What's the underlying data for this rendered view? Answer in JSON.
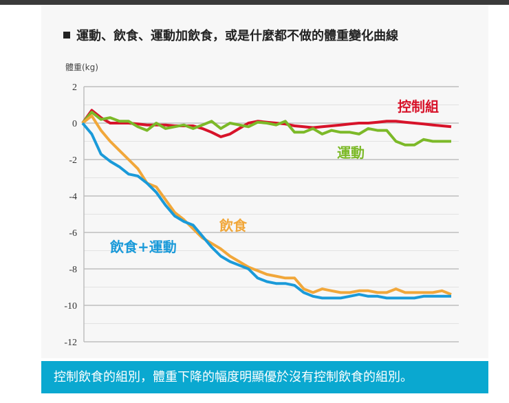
{
  "title": "運動、飲食、運動加飲食，或是什麼都不做的體重變化曲線",
  "banner": "控制飲食的組別，體重下降的幅度明顯優於沒有控制飲食的組別。",
  "chart_data": {
    "type": "line",
    "title": "運動、飲食、運動加飲食，或是什麼都不做的體重變化曲線",
    "ylabel": "體重(kg)",
    "xlabel": "",
    "ylim": [
      -12,
      2
    ],
    "yticks": [
      "2",
      "0",
      "-2",
      "-4",
      "-6",
      "-8",
      "-10",
      "-12"
    ],
    "ytick_values": [
      2,
      0,
      -2,
      -4,
      -6,
      -8,
      -10,
      -12
    ],
    "grid": true,
    "series": [
      {
        "name": "控制組",
        "color": "#d7132a",
        "values": [
          0,
          0.7,
          0.3,
          0,
          0,
          0,
          -0.05,
          -0.1,
          -0.1,
          -0.1,
          -0.15,
          -0.15,
          -0.15,
          -0.3,
          -0.5,
          -0.75,
          -0.6,
          -0.3,
          0,
          0.1,
          0.05,
          0,
          -0.05,
          -0.15,
          -0.2,
          -0.25,
          -0.2,
          -0.15,
          -0.1,
          -0.05,
          0,
          0,
          0.05,
          0.1,
          0.1,
          0.05,
          0,
          -0.05,
          -0.1,
          -0.15,
          -0.2
        ]
      },
      {
        "name": "運動",
        "color": "#7cb928",
        "values": [
          0,
          0.6,
          0.2,
          0.3,
          0.1,
          0.1,
          -0.2,
          -0.4,
          0,
          -0.3,
          -0.2,
          -0.1,
          -0.3,
          -0.1,
          0.1,
          -0.3,
          0,
          -0.1,
          -0.2,
          0.05,
          0,
          -0.1,
          0.1,
          -0.5,
          -0.5,
          -0.3,
          -0.6,
          -0.4,
          -0.5,
          -0.5,
          -0.6,
          -0.3,
          -0.4,
          -0.4,
          -1.0,
          -1.2,
          -1.2,
          -0.9,
          -1.0,
          -1.0,
          -1.0
        ]
      },
      {
        "name": "飲食",
        "color": "#f1a73a",
        "values": [
          0,
          0.4,
          -0.4,
          -1.0,
          -1.5,
          -2.0,
          -2.5,
          -3.3,
          -3.5,
          -4.2,
          -4.9,
          -5.3,
          -5.8,
          -6.3,
          -6.6,
          -6.9,
          -7.3,
          -7.6,
          -7.9,
          -8.1,
          -8.3,
          -8.4,
          -8.5,
          -8.5,
          -9.1,
          -9.3,
          -9.1,
          -9.2,
          -9.3,
          -9.3,
          -9.2,
          -9.2,
          -9.3,
          -9.3,
          -9.1,
          -9.3,
          -9.3,
          -9.3,
          -9.3,
          -9.2,
          -9.4
        ]
      },
      {
        "name": "飲食+運動",
        "color": "#1a9ad9",
        "values": [
          0,
          -0.6,
          -1.7,
          -2.1,
          -2.4,
          -2.8,
          -2.9,
          -3.3,
          -3.8,
          -4.5,
          -5.1,
          -5.4,
          -5.6,
          -6.2,
          -6.8,
          -7.3,
          -7.6,
          -7.8,
          -8.0,
          -8.5,
          -8.7,
          -8.8,
          -8.8,
          -8.9,
          -9.3,
          -9.5,
          -9.6,
          -9.6,
          -9.6,
          -9.5,
          -9.4,
          -9.5,
          -9.5,
          -9.6,
          -9.6,
          -9.6,
          -9.6,
          -9.5,
          -9.5,
          -9.5,
          -9.5
        ]
      }
    ]
  }
}
